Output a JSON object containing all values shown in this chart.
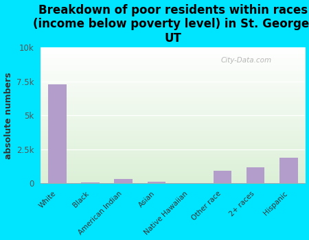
{
  "title": "Breakdown of poor residents within races\n(income below poverty level) in St. George,\nUT",
  "categories": [
    "White",
    "Black",
    "American Indian",
    "Asian",
    "Native Hawaiian",
    "Other race",
    "2+ races",
    "Hispanic"
  ],
  "values": [
    7300,
    60,
    300,
    100,
    30,
    950,
    1200,
    1900
  ],
  "bar_color": "#b39dca",
  "ylabel": "absolute numbers",
  "ylim": [
    0,
    10000
  ],
  "yticks": [
    0,
    2500,
    5000,
    7500,
    10000
  ],
  "ytick_labels": [
    "0",
    "2.5k",
    "5k",
    "7.5k",
    "10k"
  ],
  "background_color": "#00e5ff",
  "watermark": "City-Data.com",
  "title_fontsize": 12,
  "ylabel_fontsize": 9
}
